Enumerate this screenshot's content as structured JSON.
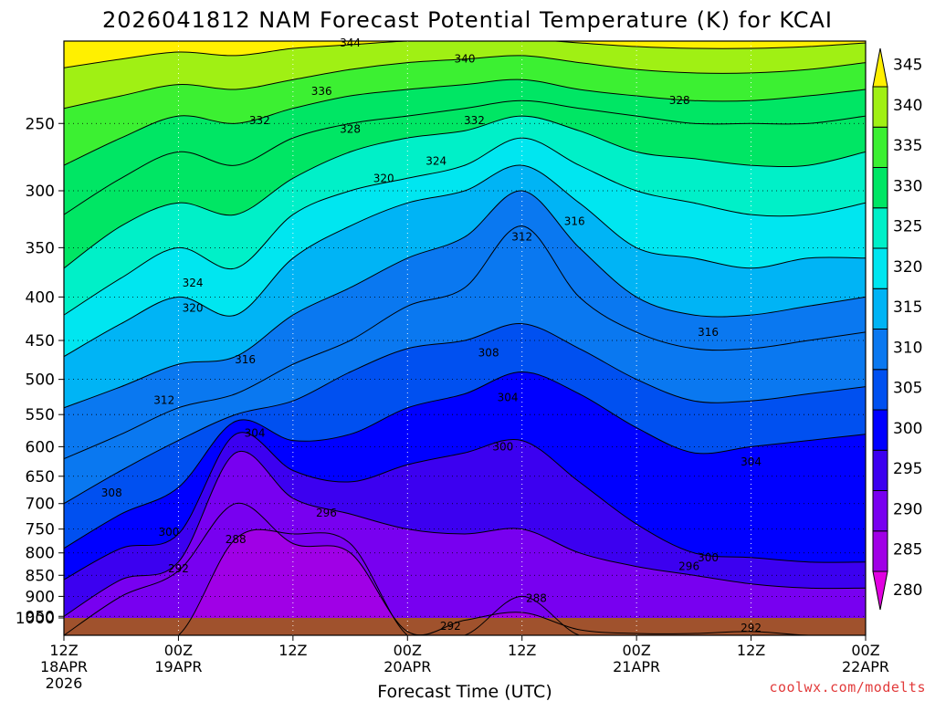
{
  "chart_data": {
    "type": "heatmap",
    "title": "2026041812 NAM Forecast Potential Temperature (K) for KCAI",
    "xlabel": "Forecast Time (UTC)",
    "ylabel": "",
    "y_scale": "log",
    "ylim": [
      1000,
      200
    ],
    "y_ticks": [
      250,
      300,
      350,
      400,
      450,
      500,
      550,
      600,
      650,
      700,
      750,
      800,
      850,
      900,
      950,
      1000
    ],
    "x_ticks": [
      {
        "hour": 0,
        "label": "12Z",
        "date": "18APR",
        "year": "2026"
      },
      {
        "hour": 12,
        "label": "00Z",
        "date": "19APR",
        "year": ""
      },
      {
        "hour": 24,
        "label": "12Z",
        "date": "",
        "year": ""
      },
      {
        "hour": 36,
        "label": "00Z",
        "date": "20APR",
        "year": ""
      },
      {
        "hour": 48,
        "label": "12Z",
        "date": "",
        "year": ""
      },
      {
        "hour": 60,
        "label": "00Z",
        "date": "21APR",
        "year": ""
      },
      {
        "hour": 72,
        "label": "12Z",
        "date": "",
        "year": ""
      },
      {
        "hour": 84,
        "label": "00Z",
        "date": "22APR",
        "year": ""
      }
    ],
    "colorbar": {
      "levels": [
        280,
        285,
        290,
        295,
        300,
        305,
        310,
        315,
        320,
        325,
        330,
        335,
        340,
        345
      ],
      "colors": [
        "#e100e1",
        "#a000e6",
        "#7800f0",
        "#3c00f0",
        "#0000ff",
        "#0050f0",
        "#0a78f0",
        "#00b4f5",
        "#00e6f0",
        "#00f0c8",
        "#00e664",
        "#3cf032",
        "#a0f014",
        "#fff000"
      ]
    },
    "isentrope_levels_K": [
      288,
      292,
      296,
      300,
      304,
      308,
      312,
      316,
      320,
      324,
      328,
      332,
      336,
      340,
      344
    ],
    "isentrope_pressure_hPa": {
      "hours": [
        0,
        6,
        12,
        18,
        24,
        30,
        36,
        42,
        48,
        54,
        60,
        66,
        72,
        78,
        84
      ],
      "288": [
        1000,
        1000,
        1000,
        770,
        760,
        780,
        1000,
        1000,
        900,
        1000,
        1000,
        1000,
        1000,
        1000,
        1000
      ],
      "292": [
        1000,
        900,
        840,
        700,
        780,
        800,
        990,
        960,
        940,
        985,
        995,
        995,
        990,
        1000,
        1000
      ],
      "296": [
        950,
        860,
        820,
        610,
        690,
        720,
        750,
        760,
        750,
        800,
        830,
        850,
        870,
        880,
        880
      ],
      "300": [
        860,
        790,
        760,
        580,
        640,
        660,
        630,
        610,
        590,
        660,
        740,
        800,
        810,
        820,
        820
      ],
      "304": [
        790,
        720,
        670,
        560,
        590,
        580,
        540,
        520,
        490,
        520,
        570,
        610,
        600,
        590,
        580
      ],
      "308": [
        700,
        640,
        590,
        550,
        530,
        490,
        460,
        450,
        430,
        460,
        500,
        530,
        530,
        520,
        510
      ],
      "312": [
        620,
        580,
        540,
        520,
        480,
        450,
        410,
        390,
        330,
        400,
        440,
        460,
        460,
        450,
        440
      ],
      "316": [
        540,
        510,
        480,
        470,
        420,
        390,
        360,
        340,
        300,
        350,
        400,
        420,
        420,
        410,
        400
      ],
      "320": [
        470,
        430,
        400,
        420,
        360,
        330,
        310,
        300,
        280,
        310,
        350,
        360,
        370,
        360,
        360
      ],
      "324": [
        420,
        380,
        350,
        370,
        320,
        300,
        290,
        280,
        260,
        280,
        300,
        310,
        320,
        320,
        310
      ],
      "328": [
        370,
        330,
        310,
        320,
        290,
        270,
        260,
        255,
        245,
        255,
        270,
        275,
        280,
        280,
        270
      ],
      "332": [
        320,
        290,
        270,
        280,
        260,
        250,
        245,
        240,
        235,
        240,
        245,
        250,
        250,
        250,
        245
      ],
      "336": [
        280,
        260,
        245,
        250,
        240,
        232,
        228,
        225,
        222,
        228,
        232,
        235,
        235,
        232,
        228
      ],
      "340": [
        240,
        232,
        225,
        228,
        222,
        216,
        212,
        210,
        208,
        212,
        216,
        218,
        218,
        216,
        212
      ],
      "344": [
        215,
        210,
        206,
        208,
        204,
        202,
        200,
        200,
        199,
        201,
        203,
        204,
        204,
        203,
        201
      ]
    },
    "contour_labels": [
      {
        "text": "344",
        "hour": 30,
        "p": 201
      },
      {
        "text": "340",
        "hour": 42,
        "p": 210
      },
      {
        "text": "336",
        "hour": 27,
        "p": 229
      },
      {
        "text": "332",
        "hour": 20.5,
        "p": 248
      },
      {
        "text": "332",
        "hour": 43,
        "p": 248
      },
      {
        "text": "328",
        "hour": 30,
        "p": 254
      },
      {
        "text": "328",
        "hour": 64.5,
        "p": 235
      },
      {
        "text": "324",
        "hour": 39,
        "p": 277
      },
      {
        "text": "320",
        "hour": 33.5,
        "p": 290
      },
      {
        "text": "316",
        "hour": 53.5,
        "p": 326
      },
      {
        "text": "312",
        "hour": 48,
        "p": 340
      },
      {
        "text": "324",
        "hour": 13.5,
        "p": 385
      },
      {
        "text": "320",
        "hour": 13.5,
        "p": 412
      },
      {
        "text": "316",
        "hour": 19,
        "p": 474
      },
      {
        "text": "316",
        "hour": 67.5,
        "p": 440
      },
      {
        "text": "312",
        "hour": 10.5,
        "p": 529
      },
      {
        "text": "308",
        "hour": 44.5,
        "p": 465
      },
      {
        "text": "304",
        "hour": 46.5,
        "p": 525
      },
      {
        "text": "304",
        "hour": 20,
        "p": 578
      },
      {
        "text": "304",
        "hour": 72,
        "p": 625
      },
      {
        "text": "300",
        "hour": 46,
        "p": 600
      },
      {
        "text": "308",
        "hour": 5,
        "p": 680
      },
      {
        "text": "296",
        "hour": 27.5,
        "p": 718
      },
      {
        "text": "300",
        "hour": 11,
        "p": 756
      },
      {
        "text": "292",
        "hour": 12,
        "p": 835
      },
      {
        "text": "288",
        "hour": 18,
        "p": 771
      },
      {
        "text": "296",
        "hour": 65.5,
        "p": 830
      },
      {
        "text": "300",
        "hour": 67.5,
        "p": 810
      },
      {
        "text": "288",
        "hour": 49.5,
        "p": 905
      },
      {
        "text": "292",
        "hour": 40.5,
        "p": 975
      },
      {
        "text": "292",
        "hour": 72,
        "p": 980
      }
    ]
  },
  "watermark": "coolwx.com/modelts"
}
